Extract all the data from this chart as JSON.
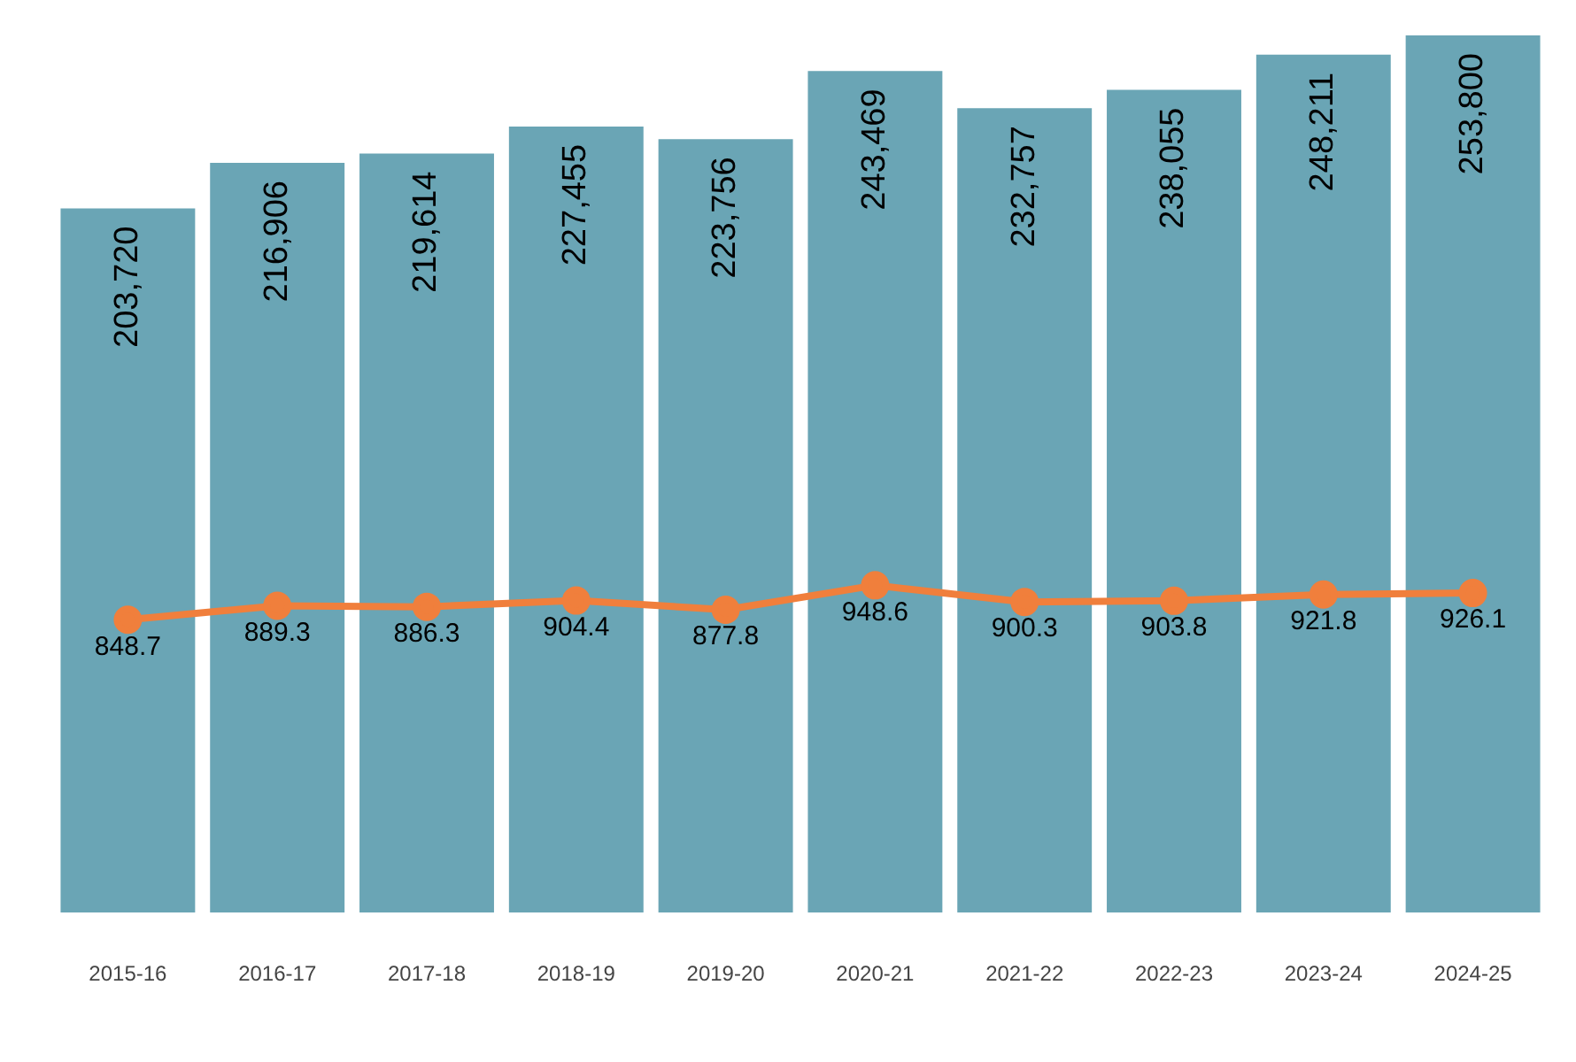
{
  "chart_data": {
    "type": "bar",
    "categories": [
      "2015-16",
      "2016-17",
      "2017-18",
      "2018-19",
      "2019-20",
      "2020-21",
      "2021-22",
      "2022-23",
      "2023-24",
      "2024-25"
    ],
    "series": [
      {
        "color": "#6aa5b5",
        "values": [
          203720,
          216906,
          219614,
          227455,
          223756,
          243469,
          232757,
          238055,
          248211,
          253800
        ],
        "value_labels": [
          "203,720",
          "216,906",
          "219,614",
          "227,455",
          "223,756",
          "243,469",
          "232,757",
          "238,055",
          "248,211",
          "253,800"
        ]
      },
      {
        "type": "line",
        "axis": "y2",
        "color": "#f07f3c",
        "marker": "circle",
        "values": [
          848.7,
          889.3,
          886.3,
          904.4,
          877.8,
          948.6,
          900.3,
          903.8,
          921.8,
          926.1
        ]
      }
    ],
    "data_labels": true,
    "grid": false,
    "legend": false,
    "tick_labels": "x"
  }
}
